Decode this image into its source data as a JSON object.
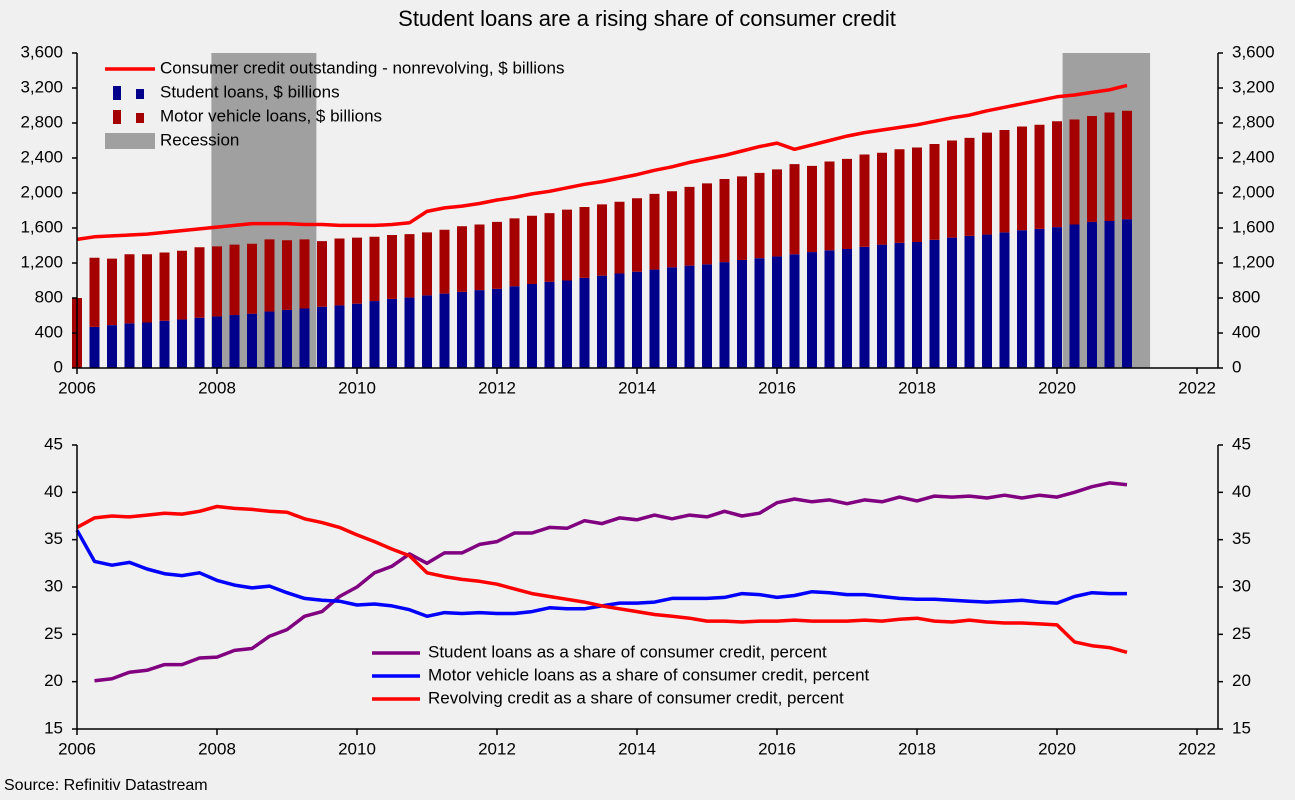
{
  "title": "Student loans are a rising share of consumer credit",
  "source": "Source: Refinitiv Datastream",
  "chart_data": [
    {
      "type": "bar",
      "stacked": true,
      "x": [
        2006,
        2006.25,
        2006.5,
        2006.75,
        2007,
        2007.25,
        2007.5,
        2007.75,
        2008,
        2008.25,
        2008.5,
        2008.75,
        2009,
        2009.25,
        2009.5,
        2009.75,
        2010,
        2010.25,
        2010.5,
        2010.75,
        2011,
        2011.25,
        2011.5,
        2011.75,
        2012,
        2012.25,
        2012.5,
        2012.75,
        2013,
        2013.25,
        2013.5,
        2013.75,
        2014,
        2014.25,
        2014.5,
        2014.75,
        2015,
        2015.25,
        2015.5,
        2015.75,
        2016,
        2016.25,
        2016.5,
        2016.75,
        2017,
        2017.25,
        2017.5,
        2017.75,
        2018,
        2018.25,
        2018.5,
        2018.75,
        2019,
        2019.25,
        2019.5,
        2019.75,
        2020,
        2020.25,
        2020.5,
        2020.75,
        2021
      ],
      "xlim": [
        2006,
        2022.3
      ],
      "xticks": [
        2006,
        2008,
        2010,
        2012,
        2014,
        2016,
        2018,
        2020,
        2022
      ],
      "ylim": [
        0,
        3600
      ],
      "yticks": [
        0,
        400,
        800,
        {
          "value": 1200,
          "label": "1,200"
        },
        {
          "value": 1600,
          "label": "1,600"
        },
        {
          "value": 2000,
          "label": "2,000"
        },
        {
          "value": 2400,
          "label": "2,400"
        },
        {
          "value": 2800,
          "label": "2,800"
        },
        {
          "value": 3200,
          "label": "3,200"
        },
        {
          "value": 3600,
          "label": "3,600"
        }
      ],
      "recession": {
        "name": "Recession",
        "color": "#a0a0a0",
        "spans": [
          [
            2007.92,
            2009.42
          ],
          [
            2020.08,
            2021.33
          ]
        ]
      },
      "series": [
        {
          "name": "Student loans, $ billions",
          "type": "bar",
          "color": "#00008b",
          "values": [
            null,
            470,
            490,
            510,
            520,
            540,
            555,
            575,
            590,
            605,
            620,
            645,
            665,
            680,
            700,
            715,
            735,
            765,
            790,
            805,
            830,
            850,
            870,
            890,
            905,
            935,
            960,
            985,
            1000,
            1030,
            1055,
            1080,
            1100,
            1125,
            1150,
            1170,
            1185,
            1210,
            1235,
            1255,
            1275,
            1300,
            1325,
            1345,
            1360,
            1385,
            1410,
            1430,
            1440,
            1465,
            1490,
            1510,
            1525,
            1550,
            1575,
            1590,
            1610,
            1640,
            1670,
            1680,
            1700
          ]
        },
        {
          "name": "Motor vehicle loans, $ billions",
          "type": "bar",
          "color": "#a50000",
          "values": [
            800,
            790,
            760,
            790,
            780,
            780,
            785,
            805,
            800,
            805,
            800,
            825,
            795,
            790,
            750,
            765,
            755,
            735,
            730,
            725,
            720,
            730,
            750,
            750,
            765,
            775,
            780,
            785,
            810,
            810,
            815,
            820,
            840,
            865,
            870,
            900,
            925,
            950,
            955,
            975,
            995,
            1030,
            985,
            1015,
            1030,
            1055,
            1050,
            1070,
            1080,
            1095,
            1110,
            1120,
            1165,
            1170,
            1185,
            1190,
            1210,
            1200,
            1210,
            1240,
            1240
          ]
        },
        {
          "name": "Consumer credit outstanding - nonrevolving, $ billions",
          "type": "line",
          "color": "#ff0000",
          "values": [
            1470,
            1500,
            1510,
            1520,
            1530,
            1550,
            1570,
            1590,
            1610,
            1630,
            1650,
            1650,
            1650,
            1640,
            1640,
            1630,
            1630,
            1630,
            1640,
            1660,
            1790,
            1830,
            1850,
            1880,
            1920,
            1950,
            1990,
            2020,
            2060,
            2100,
            2130,
            2170,
            2210,
            2260,
            2300,
            2350,
            2390,
            2430,
            2480,
            2530,
            2570,
            2500,
            2550,
            2600,
            2650,
            2690,
            2720,
            2750,
            2780,
            2820,
            2860,
            2890,
            2940,
            2980,
            3020,
            3060,
            3100,
            3120,
            3150,
            3180,
            3230
          ]
        }
      ]
    },
    {
      "type": "line",
      "x": [
        2006,
        2006.25,
        2006.5,
        2006.75,
        2007,
        2007.25,
        2007.5,
        2007.75,
        2008,
        2008.25,
        2008.5,
        2008.75,
        2009,
        2009.25,
        2009.5,
        2009.75,
        2010,
        2010.25,
        2010.5,
        2010.75,
        2011,
        2011.25,
        2011.5,
        2011.75,
        2012,
        2012.25,
        2012.5,
        2012.75,
        2013,
        2013.25,
        2013.5,
        2013.75,
        2014,
        2014.25,
        2014.5,
        2014.75,
        2015,
        2015.25,
        2015.5,
        2015.75,
        2016,
        2016.25,
        2016.5,
        2016.75,
        2017,
        2017.25,
        2017.5,
        2017.75,
        2018,
        2018.25,
        2018.5,
        2018.75,
        2019,
        2019.25,
        2019.5,
        2019.75,
        2020,
        2020.25,
        2020.5,
        2020.75,
        2021
      ],
      "xlim": [
        2006,
        2022.3
      ],
      "xticks": [
        2006,
        2008,
        2010,
        2012,
        2014,
        2016,
        2018,
        2020,
        2022
      ],
      "ylim": [
        15,
        45
      ],
      "yticks": [
        15,
        20,
        25,
        30,
        35,
        40,
        45
      ],
      "series": [
        {
          "name": "Student loans as a share of consumer credit, percent",
          "color": "#800080",
          "values": [
            null,
            20.1,
            20.3,
            21.0,
            21.2,
            21.8,
            21.8,
            22.5,
            22.6,
            23.3,
            23.5,
            24.8,
            25.5,
            26.9,
            27.4,
            29.0,
            30.0,
            31.5,
            32.2,
            33.5,
            32.5,
            33.6,
            33.6,
            34.5,
            34.8,
            35.7,
            35.7,
            36.3,
            36.2,
            37.0,
            36.7,
            37.3,
            37.1,
            37.6,
            37.2,
            37.6,
            37.4,
            38.0,
            37.5,
            37.8,
            38.9,
            39.3,
            39.0,
            39.2,
            38.8,
            39.2,
            39.0,
            39.5,
            39.1,
            39.6,
            39.5,
            39.6,
            39.4,
            39.7,
            39.4,
            39.7,
            39.5,
            40.0,
            40.6,
            41.0,
            40.8
          ]
        },
        {
          "name": "Motor vehicle loans as a share of consumer credit, percent",
          "color": "#0000ff",
          "values": [
            36.0,
            32.7,
            32.3,
            32.6,
            31.9,
            31.4,
            31.2,
            31.5,
            30.7,
            30.2,
            29.9,
            30.1,
            29.4,
            28.8,
            28.6,
            28.5,
            28.1,
            28.2,
            28.0,
            27.6,
            26.9,
            27.3,
            27.2,
            27.3,
            27.2,
            27.2,
            27.4,
            27.8,
            27.7,
            27.7,
            28.0,
            28.3,
            28.3,
            28.4,
            28.8,
            28.8,
            28.8,
            28.9,
            29.3,
            29.2,
            28.9,
            29.1,
            29.5,
            29.4,
            29.2,
            29.2,
            29.0,
            28.8,
            28.7,
            28.7,
            28.6,
            28.5,
            28.4,
            28.5,
            28.6,
            28.4,
            28.3,
            29.0,
            29.4,
            29.3,
            29.3
          ]
        },
        {
          "name": "Revolving credit as a share of consumer credit, percent",
          "color": "#ff0000",
          "values": [
            36.3,
            37.3,
            37.5,
            37.4,
            37.6,
            37.8,
            37.7,
            38.0,
            38.5,
            38.3,
            38.2,
            38.0,
            37.9,
            37.2,
            36.8,
            36.3,
            35.5,
            34.8,
            34.0,
            33.3,
            31.5,
            31.1,
            30.8,
            30.6,
            30.3,
            29.8,
            29.3,
            29.0,
            28.7,
            28.4,
            28.0,
            27.7,
            27.4,
            27.1,
            26.9,
            26.7,
            26.4,
            26.4,
            26.3,
            26.4,
            26.4,
            26.5,
            26.4,
            26.4,
            26.4,
            26.5,
            26.4,
            26.6,
            26.7,
            26.4,
            26.3,
            26.5,
            26.3,
            26.2,
            26.2,
            26.1,
            26.0,
            24.2,
            23.8,
            23.6,
            23.1
          ]
        }
      ]
    }
  ]
}
